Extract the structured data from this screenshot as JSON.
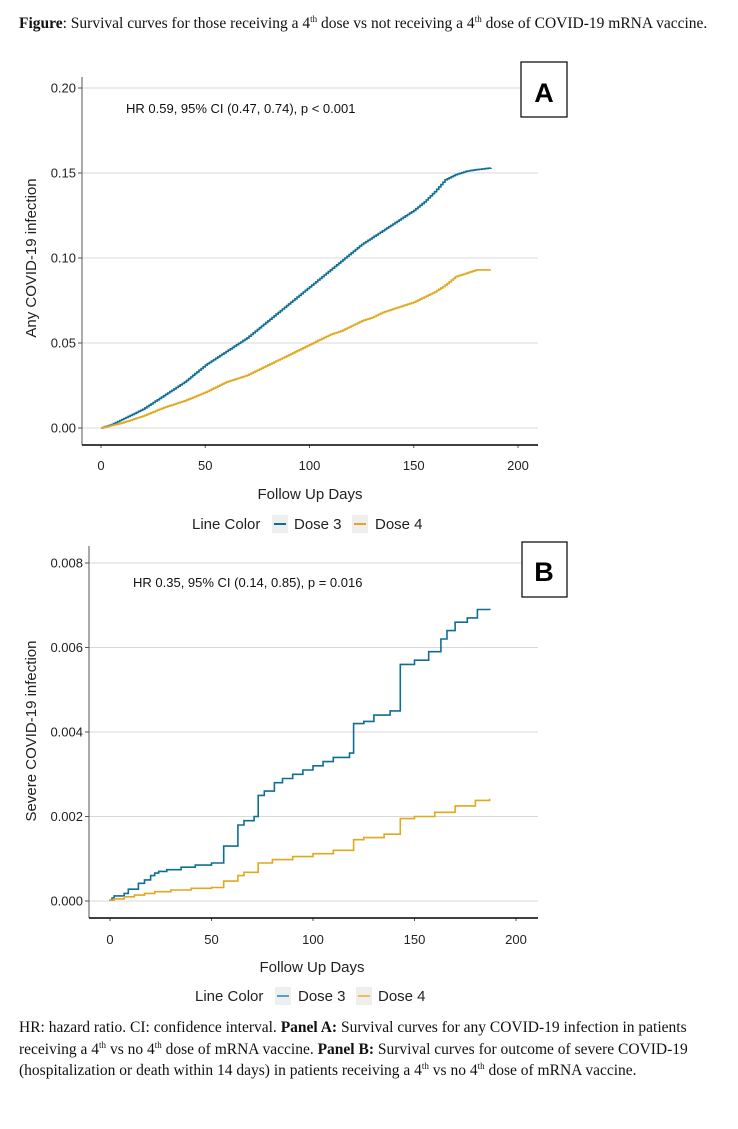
{
  "caption_top": {
    "label": "Figure",
    "text_1": ": Survival curves for those receiving a 4",
    "sup_1": "th",
    "text_2": " dose vs not receiving a 4",
    "sup_2": "th",
    "text_3": " dose of COVID-19 mRNA vaccine."
  },
  "caption_bottom": {
    "part_1": "HR: hazard ratio. CI: confidence interval. ",
    "panel_a_label": "Panel A:",
    "part_2": " Survival curves for any COVID-19 infection in patients receiving a 4",
    "sup_1": "th",
    "part_3": " vs no 4",
    "sup_2": "th",
    "part_4": " dose of mRNA vaccine. ",
    "panel_b_label": "Panel B:",
    "part_5": " Survival curves for outcome of severe COVID-19 (hospitalization or death within 14 days) in patients receiving a 4",
    "sup_3": "th",
    "part_6": " vs no 4",
    "sup_4": "th",
    "part_7": " dose of mRNA vaccine."
  },
  "colors": {
    "dose3": "#0f6e94",
    "dose4": "#e0a81c",
    "grid": "#d9d9d9",
    "axis": "#000000"
  },
  "chart_data": [
    {
      "type": "line",
      "panel_label": "A",
      "annotation": "HR 0.59, 95% CI (0.47, 0.74), p < 0.001",
      "xlabel": "Follow Up Days",
      "ylabel": "Any COVID-19 infection",
      "xlim": [
        -3,
        210
      ],
      "ylim": [
        -0.01,
        0.21
      ],
      "xticks": [
        0,
        50,
        100,
        150,
        200
      ],
      "xtick_labels": [
        "0",
        "50",
        "100",
        "150",
        "200"
      ],
      "yticks": [
        0.0,
        0.05,
        0.1,
        0.15,
        0.2
      ],
      "ytick_labels": [
        "0.00",
        "0.05",
        "0.10",
        "0.15",
        "0.20"
      ],
      "grid": true,
      "legend": {
        "title": "Line Color",
        "position": "bottom",
        "entries": [
          "Dose 3",
          "Dose 4"
        ]
      },
      "series": [
        {
          "name": "Dose 3",
          "x": [
            0,
            5,
            10,
            15,
            20,
            25,
            30,
            35,
            40,
            45,
            50,
            55,
            60,
            65,
            70,
            75,
            80,
            85,
            90,
            95,
            100,
            105,
            110,
            115,
            120,
            125,
            130,
            135,
            140,
            145,
            150,
            155,
            160,
            165,
            170,
            175,
            180,
            187
          ],
          "y": [
            0.0,
            0.002,
            0.005,
            0.008,
            0.011,
            0.015,
            0.019,
            0.023,
            0.027,
            0.032,
            0.037,
            0.041,
            0.045,
            0.049,
            0.053,
            0.058,
            0.063,
            0.068,
            0.073,
            0.078,
            0.083,
            0.088,
            0.093,
            0.098,
            0.103,
            0.108,
            0.112,
            0.116,
            0.12,
            0.124,
            0.128,
            0.133,
            0.139,
            0.146,
            0.149,
            0.151,
            0.152,
            0.153
          ]
        },
        {
          "name": "Dose 4",
          "x": [
            0,
            5,
            10,
            15,
            20,
            25,
            30,
            35,
            40,
            45,
            50,
            55,
            60,
            65,
            70,
            75,
            80,
            85,
            90,
            95,
            100,
            105,
            110,
            115,
            120,
            125,
            130,
            135,
            140,
            145,
            150,
            155,
            160,
            165,
            170,
            175,
            180,
            187
          ],
          "y": [
            0.0,
            0.0015,
            0.003,
            0.005,
            0.007,
            0.0095,
            0.012,
            0.014,
            0.016,
            0.0185,
            0.021,
            0.024,
            0.027,
            0.029,
            0.031,
            0.034,
            0.037,
            0.04,
            0.043,
            0.046,
            0.049,
            0.052,
            0.055,
            0.057,
            0.06,
            0.063,
            0.065,
            0.068,
            0.07,
            0.072,
            0.074,
            0.077,
            0.08,
            0.084,
            0.089,
            0.091,
            0.093,
            0.093
          ]
        }
      ]
    },
    {
      "type": "line",
      "panel_label": "B",
      "annotation": "HR 0.35, 95% CI (0.14, 0.85), p = 0.016",
      "xlabel": "Follow Up Days",
      "ylabel": "Severe COVID-19 infection",
      "xlim": [
        -3,
        210
      ],
      "ylim": [
        -0.0004,
        0.0084
      ],
      "xticks": [
        0,
        50,
        100,
        150,
        200
      ],
      "xtick_labels": [
        "0",
        "50",
        "100",
        "150",
        "200"
      ],
      "yticks": [
        0.0,
        0.002,
        0.004,
        0.006,
        0.008
      ],
      "ytick_labels": [
        "0.000",
        "0.002",
        "0.004",
        "0.006",
        "0.008"
      ],
      "grid": true,
      "legend": {
        "title": "Line Color",
        "position": "bottom",
        "entries": [
          "Dose 3",
          "Dose 4"
        ]
      },
      "series": [
        {
          "name": "Dose 3",
          "step": true,
          "x": [
            0,
            1,
            2,
            7,
            9,
            14,
            17,
            20,
            22,
            24,
            28,
            35,
            42,
            50,
            56,
            63,
            66,
            71,
            73,
            76,
            81,
            85,
            90,
            95,
            100,
            105,
            110,
            118,
            120,
            125,
            130,
            138,
            143,
            150,
            157,
            163,
            166,
            170,
            176,
            181,
            187
          ],
          "y": [
            2e-05,
            7e-05,
            0.00012,
            0.00018,
            0.00028,
            0.00042,
            0.0005,
            0.0006,
            0.00066,
            0.0007,
            0.00074,
            0.0008,
            0.00085,
            0.0009,
            0.0013,
            0.0018,
            0.0019,
            0.002,
            0.0025,
            0.0026,
            0.0028,
            0.0029,
            0.003,
            0.0031,
            0.0032,
            0.0033,
            0.0034,
            0.0035,
            0.0042,
            0.00425,
            0.0044,
            0.0045,
            0.0056,
            0.0057,
            0.0059,
            0.0062,
            0.0064,
            0.0066,
            0.0067,
            0.0069,
            0.00692
          ]
        },
        {
          "name": "Dose 4",
          "step": true,
          "x": [
            0,
            2,
            7,
            12,
            17,
            22,
            30,
            40,
            50,
            56,
            63,
            66,
            73,
            80,
            90,
            100,
            110,
            120,
            125,
            135,
            143,
            150,
            160,
            170,
            180,
            187
          ],
          "y": [
            2e-05,
            5e-05,
            0.0001,
            0.00014,
            0.00018,
            0.00022,
            0.00026,
            0.0003,
            0.00032,
            0.00047,
            0.0006,
            0.00068,
            0.0009,
            0.00098,
            0.00105,
            0.00112,
            0.0012,
            0.00145,
            0.0015,
            0.00158,
            0.00195,
            0.002,
            0.0021,
            0.00225,
            0.00238,
            0.00242
          ]
        }
      ]
    }
  ]
}
